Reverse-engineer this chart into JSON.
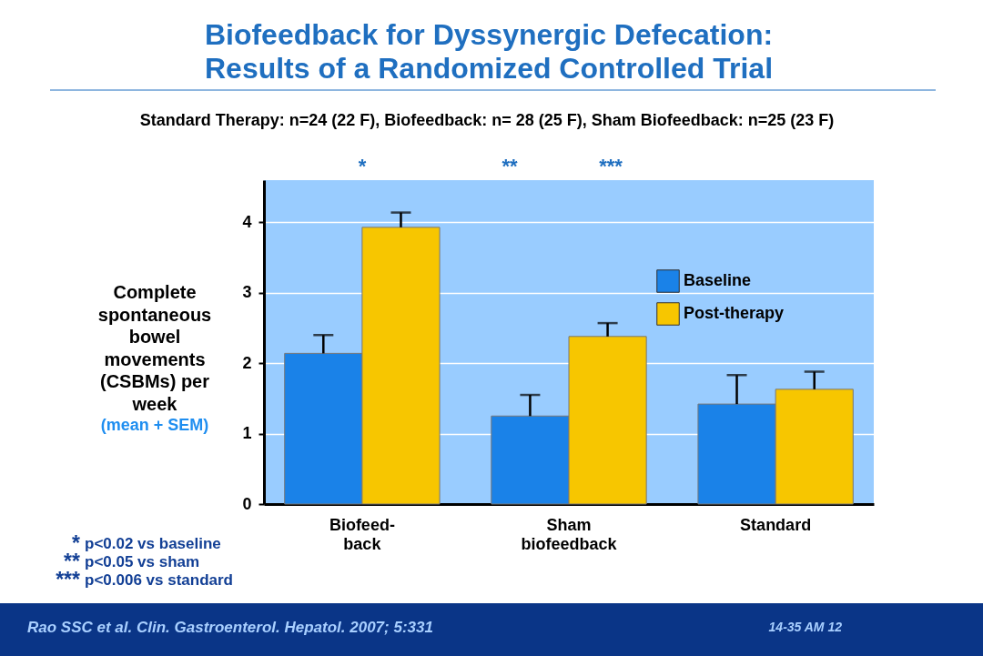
{
  "chart_data": {
    "type": "bar",
    "title": "Biofeedback for Dyssynergic Defecation: Results of a Randomized Controlled Trial",
    "subtitle": "Standard Therapy: n=24 (22 F), Biofeedback: n= 28 (25 F), Sham Biofeedback: n=25 (23 F)",
    "ylabel": "Complete spontaneous bowel movements (CSBMs) per week",
    "categories": [
      "Biofeed-\nback",
      "Sham\nbiofeedback",
      "Standard"
    ],
    "series": [
      {
        "name": "Baseline",
        "color": "#1a82e8",
        "values": [
          2.14,
          1.25,
          1.42
        ],
        "errors": [
          [
            2.14,
            2.4
          ],
          [
            1.25,
            1.55
          ],
          [
            1.42,
            1.83
          ]
        ]
      },
      {
        "name": "Post-therapy",
        "color": "#f7c600",
        "values": [
          3.93,
          2.38,
          1.63
        ],
        "errors": [
          [
            3.93,
            4.14
          ],
          [
            2.38,
            2.57
          ],
          [
            1.63,
            1.88
          ]
        ]
      }
    ],
    "ylim": [
      0,
      4.6
    ],
    "yticks": [
      0,
      1,
      2,
      3,
      4
    ],
    "grid": "y",
    "legend": "top right",
    "annotations": [
      "(mean + SEM)",
      "*",
      "**",
      "***",
      "* p<0.02 vs baseline",
      "** p<0.05 vs sham",
      "*** p<0.006 vs standard",
      "Rao SSC et al. Clin. Gastroenterol. Hepatol. 2007; 5:331",
      "14-35 AM 12"
    ]
  }
}
